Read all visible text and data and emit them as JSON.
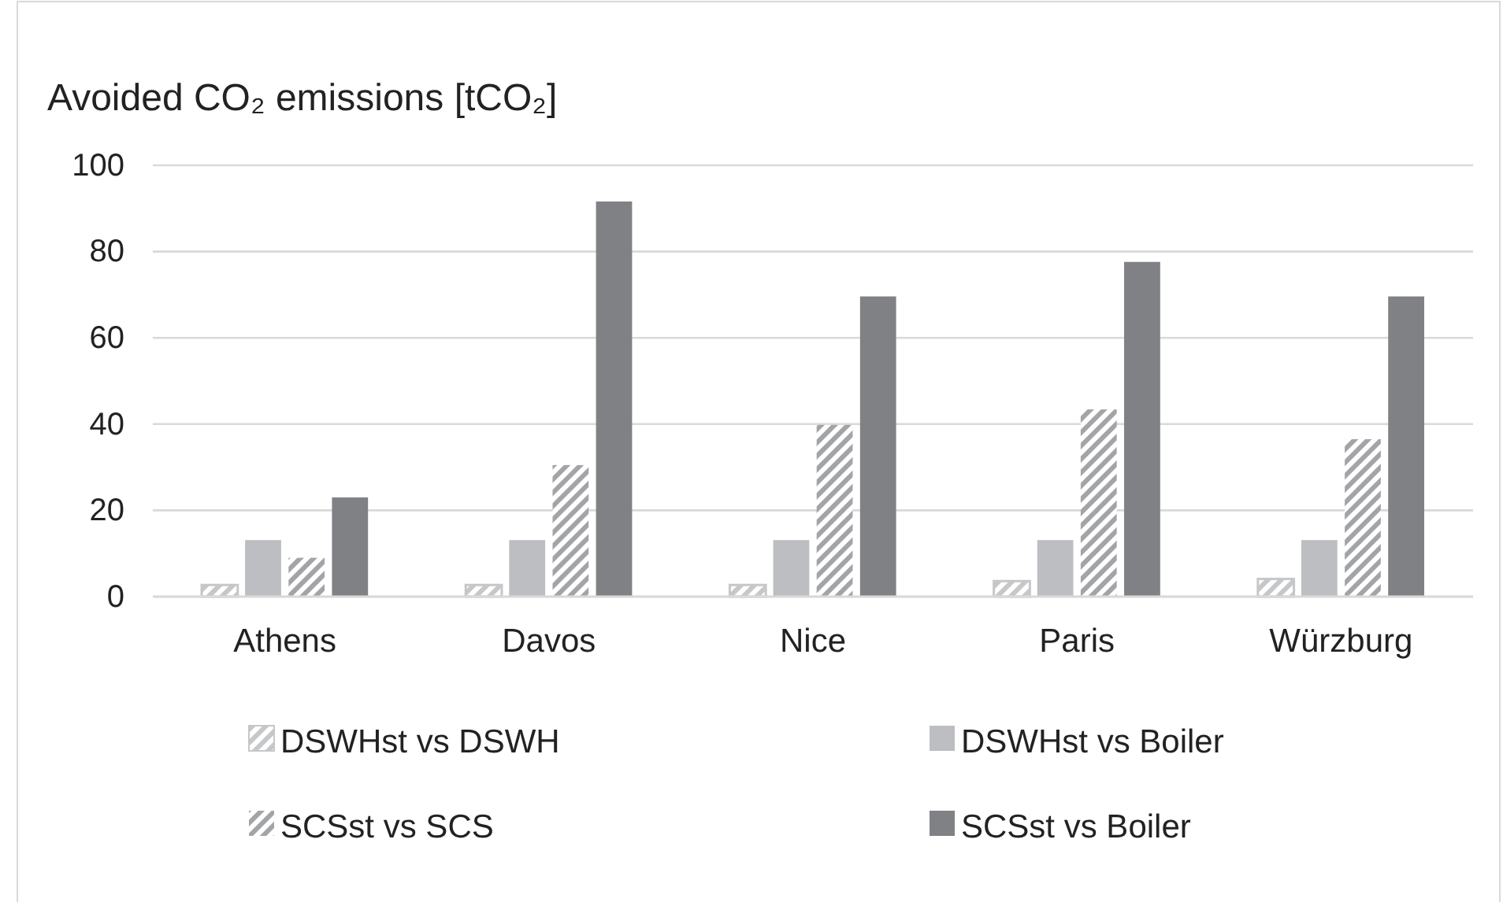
{
  "chart_data": {
    "type": "bar",
    "title": "Avoided CO₂ emissions [tCO₂]",
    "categories": [
      "Athens",
      "Davos",
      "Nice",
      "Paris",
      "Würzburg"
    ],
    "series": [
      {
        "name": "DSWHst vs DSWH",
        "color": "#c6c7c9",
        "values": [
          2.7,
          2.7,
          2.7,
          3.6,
          4.1
        ]
      },
      {
        "name": "DSWHst vs Boiler",
        "color": "#bdbec2",
        "values": [
          13.1,
          13.1,
          13.1,
          13.1,
          13.1
        ]
      },
      {
        "name": "SCSst vs SCS",
        "color": "#a3a4a7",
        "values": [
          9,
          30.5,
          39.8,
          43.4,
          36.5
        ]
      },
      {
        "name": "SCSst vs Boiler",
        "color": "#808184",
        "values": [
          23,
          91.6,
          69.6,
          77.6,
          69.6
        ]
      }
    ],
    "ylim": [
      0,
      100
    ],
    "yticks": [
      0,
      20,
      40,
      60,
      80,
      100
    ],
    "grid": "y",
    "legend": "bottom"
  }
}
